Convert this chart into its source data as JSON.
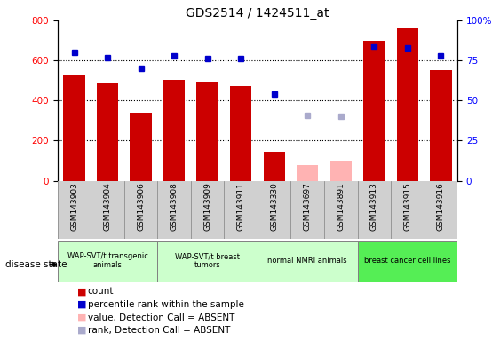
{
  "title": "GDS2514 / 1424511_at",
  "samples": [
    "GSM143903",
    "GSM143904",
    "GSM143906",
    "GSM143908",
    "GSM143909",
    "GSM143911",
    "GSM143330",
    "GSM143697",
    "GSM143891",
    "GSM143913",
    "GSM143915",
    "GSM143916"
  ],
  "count_present": [
    530,
    492,
    340,
    503,
    496,
    472,
    145,
    null,
    null,
    700,
    762,
    554
  ],
  "count_absent": [
    null,
    null,
    null,
    null,
    null,
    null,
    null,
    78,
    100,
    null,
    null,
    null
  ],
  "rank_present": [
    80,
    77,
    70,
    78,
    76,
    76,
    54,
    null,
    null,
    84,
    83,
    78
  ],
  "rank_absent": [
    null,
    null,
    null,
    null,
    null,
    null,
    null,
    41,
    40,
    null,
    null,
    null
  ],
  "ylim_left": [
    0,
    800
  ],
  "ylim_right": [
    0,
    100
  ],
  "yticks_left": [
    0,
    200,
    400,
    600,
    800
  ],
  "yticks_right": [
    0,
    25,
    50,
    75,
    100
  ],
  "bar_color_present": "#cc0000",
  "bar_color_absent": "#ffb3b3",
  "dot_color_present": "#0000cc",
  "dot_color_absent": "#aaaacc",
  "group_colors": [
    "#ccffcc",
    "#ccffcc",
    "#ccffcc",
    "#55ee55"
  ],
  "group_labels": [
    "WAP-SVT/t transgenic\nanimals",
    "WAP-SVT/t breast\ntumors",
    "normal NMRI animals",
    "breast cancer cell lines"
  ],
  "group_ranges": [
    [
      0,
      3
    ],
    [
      3,
      6
    ],
    [
      6,
      9
    ],
    [
      9,
      12
    ]
  ],
  "legend_items": [
    {
      "label": "count",
      "color": "#cc0000"
    },
    {
      "label": "percentile rank within the sample",
      "color": "#0000cc"
    },
    {
      "label": "value, Detection Call = ABSENT",
      "color": "#ffb3b3"
    },
    {
      "label": "rank, Detection Call = ABSENT",
      "color": "#aaaacc"
    }
  ],
  "disease_state_label": "disease state",
  "xtick_bg": "#d0d0d0",
  "grid_dotted": [
    200,
    400,
    600
  ]
}
